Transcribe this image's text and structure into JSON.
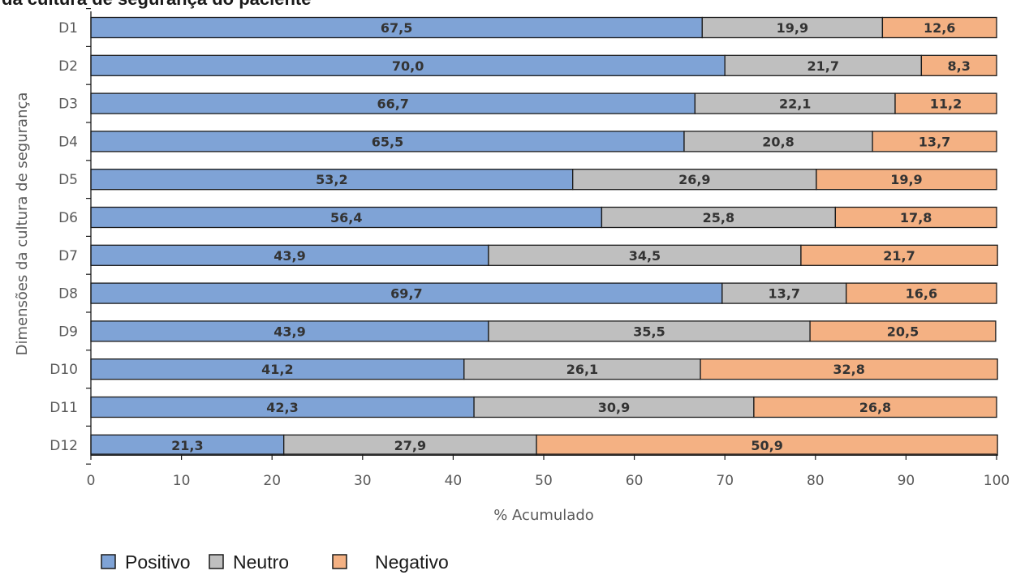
{
  "chart_data": {
    "type": "bar",
    "orientation": "horizontal",
    "stacked": true,
    "title": "da cultura de segurança do paciente",
    "xlabel": "% Acumulado",
    "ylabel": "Dimensões da cultura de segurança",
    "xlim": [
      0,
      100
    ],
    "xticks": [
      "0",
      "10",
      "20",
      "30",
      "40",
      "50",
      "60",
      "70",
      "80",
      "90",
      "100"
    ],
    "grid": false,
    "legend_position": "bottom-left",
    "categories": [
      "D1",
      "D2",
      "D3",
      "D4",
      "D5",
      "D6",
      "D7",
      "D8",
      "D9",
      "D10",
      "D11",
      "D12"
    ],
    "series": [
      {
        "name": "Positivo",
        "color": "#7fa3d6",
        "values": [
          67.5,
          70.0,
          66.7,
          65.5,
          53.2,
          56.4,
          43.9,
          69.7,
          43.9,
          41.2,
          42.3,
          21.3
        ],
        "labels": [
          "67,5",
          "70,0",
          "66,7",
          "65,5",
          "53,2",
          "56,4",
          "43,9",
          "69,7",
          "43,9",
          "41,2",
          "42,3",
          "21,3"
        ]
      },
      {
        "name": "Neutro",
        "color": "#bfbfbf",
        "values": [
          19.9,
          21.7,
          22.1,
          20.8,
          26.9,
          25.8,
          34.5,
          13.7,
          35.5,
          26.1,
          30.9,
          27.9
        ],
        "labels": [
          "19,9",
          "21,7",
          "22,1",
          "20,8",
          "26,9",
          "25,8",
          "34,5",
          "13,7",
          "35,5",
          "26,1",
          "30,9",
          "27,9"
        ]
      },
      {
        "name": "Negativo",
        "color": "#f4b183",
        "values": [
          12.6,
          8.3,
          11.2,
          13.7,
          19.9,
          17.8,
          21.7,
          16.6,
          20.5,
          32.8,
          26.8,
          50.9
        ],
        "labels": [
          "12,6",
          "8,3",
          "11,2",
          "13,7",
          "19,9",
          "17,8",
          "21,7",
          "16,6",
          "20,5",
          "32,8",
          "26,8",
          "50,9"
        ]
      }
    ]
  }
}
